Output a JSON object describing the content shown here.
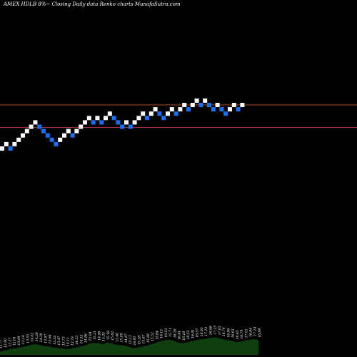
{
  "header": {
    "title": "AMEX  HDLB 8%~  Closing Daily data  Renko  charts MunafaSutra.com"
  },
  "colors": {
    "background": "#000000",
    "up_brick": "#ffffff",
    "down_brick": "#1e6ff0",
    "reference_line": "#c0522a",
    "volume": "#0f3f0f",
    "volume_label": "#ffffff"
  },
  "chart_data": [
    {
      "type": "renko",
      "title": "AMEX  HDLB 8%~  Closing Daily data  Renko  charts MunafaSutra.com",
      "bricks": [
        {
          "level": 0,
          "dir": "up"
        },
        {
          "level": 1,
          "dir": "up"
        },
        {
          "level": 0,
          "dir": "down"
        },
        {
          "level": 1,
          "dir": "up"
        },
        {
          "level": 2,
          "dir": "up"
        },
        {
          "level": 3,
          "dir": "up"
        },
        {
          "level": 4,
          "dir": "up"
        },
        {
          "level": 5,
          "dir": "up"
        },
        {
          "level": 6,
          "dir": "up"
        },
        {
          "level": 5,
          "dir": "down"
        },
        {
          "level": 4,
          "dir": "down"
        },
        {
          "level": 3,
          "dir": "down"
        },
        {
          "level": 2,
          "dir": "down"
        },
        {
          "level": 1,
          "dir": "down"
        },
        {
          "level": 2,
          "dir": "up"
        },
        {
          "level": 3,
          "dir": "up"
        },
        {
          "level": 4,
          "dir": "up"
        },
        {
          "level": 3,
          "dir": "down"
        },
        {
          "level": 4,
          "dir": "up"
        },
        {
          "level": 5,
          "dir": "up"
        },
        {
          "level": 6,
          "dir": "up"
        },
        {
          "level": 7,
          "dir": "up"
        },
        {
          "level": 6,
          "dir": "down"
        },
        {
          "level": 7,
          "dir": "up"
        },
        {
          "level": 6,
          "dir": "down"
        },
        {
          "level": 7,
          "dir": "up"
        },
        {
          "level": 8,
          "dir": "up"
        },
        {
          "level": 7,
          "dir": "down"
        },
        {
          "level": 6,
          "dir": "down"
        },
        {
          "level": 5,
          "dir": "down"
        },
        {
          "level": 6,
          "dir": "up"
        },
        {
          "level": 5,
          "dir": "down"
        },
        {
          "level": 6,
          "dir": "up"
        },
        {
          "level": 7,
          "dir": "up"
        },
        {
          "level": 8,
          "dir": "up"
        },
        {
          "level": 7,
          "dir": "down"
        },
        {
          "level": 8,
          "dir": "up"
        },
        {
          "level": 9,
          "dir": "up"
        },
        {
          "level": 8,
          "dir": "down"
        },
        {
          "level": 7,
          "dir": "down"
        },
        {
          "level": 8,
          "dir": "up"
        },
        {
          "level": 9,
          "dir": "up"
        },
        {
          "level": 8,
          "dir": "down"
        },
        {
          "level": 9,
          "dir": "up"
        },
        {
          "level": 10,
          "dir": "up"
        },
        {
          "level": 9,
          "dir": "down"
        },
        {
          "level": 10,
          "dir": "up"
        },
        {
          "level": 11,
          "dir": "up"
        },
        {
          "level": 10,
          "dir": "down"
        },
        {
          "level": 11,
          "dir": "up"
        },
        {
          "level": 10,
          "dir": "down"
        },
        {
          "level": 9,
          "dir": "down"
        },
        {
          "level": 10,
          "dir": "up"
        },
        {
          "level": 9,
          "dir": "down"
        },
        {
          "level": 8,
          "dir": "down"
        },
        {
          "level": 9,
          "dir": "up"
        },
        {
          "level": 10,
          "dir": "up"
        },
        {
          "level": 9,
          "dir": "down"
        },
        {
          "level": 10,
          "dir": "up"
        }
      ],
      "reference_lines": [
        9.6,
        4.4
      ],
      "volume": [
        0.14,
        0.18,
        0.22,
        0.26,
        0.28,
        0.32,
        0.36,
        0.42,
        0.44,
        0.4,
        0.36,
        0.34,
        0.3,
        0.28,
        0.26,
        0.24,
        0.26,
        0.3,
        0.34,
        0.38,
        0.46,
        0.5,
        0.48,
        0.44,
        0.5,
        0.48,
        0.42,
        0.4,
        0.38,
        0.32,
        0.28,
        0.3,
        0.34,
        0.38,
        0.44,
        0.5,
        0.56,
        0.6,
        0.62,
        0.58,
        0.5,
        0.48,
        0.52,
        0.56,
        0.6,
        0.64,
        0.66,
        0.7,
        0.72,
        0.7,
        0.64,
        0.6,
        0.58,
        0.52,
        0.54,
        0.58,
        0.62,
        0.66,
        0.6
      ],
      "volume_labels": [
        "12.77",
        "12.90",
        "12.37",
        "12.61",
        "13.09",
        "13.14",
        "13.55",
        "14.02",
        "14.24",
        "14.39",
        "13.97",
        "13.66",
        "13.32",
        "13.47",
        "13.73",
        "14.11",
        "13.79",
        "14.33",
        "14.52",
        "14.86",
        "15.04",
        "15.21",
        "14.98",
        "15.35",
        "15.18",
        "15.62",
        "15.40",
        "15.09",
        "14.87",
        "15.13",
        "14.95",
        "15.28",
        "15.67",
        "15.89",
        "15.52",
        "15.84",
        "16.12",
        "16.03",
        "15.71",
        "16.26",
        "16.44",
        "16.18",
        "16.52",
        "16.81",
        "16.57",
        "16.93",
        "17.12",
        "16.88",
        "17.25",
        "17.03",
        "16.74",
        "16.96",
        "16.62",
        "16.45",
        "16.79",
        "17.01",
        "16.84",
        "17.14",
        "16.99"
      ]
    }
  ]
}
